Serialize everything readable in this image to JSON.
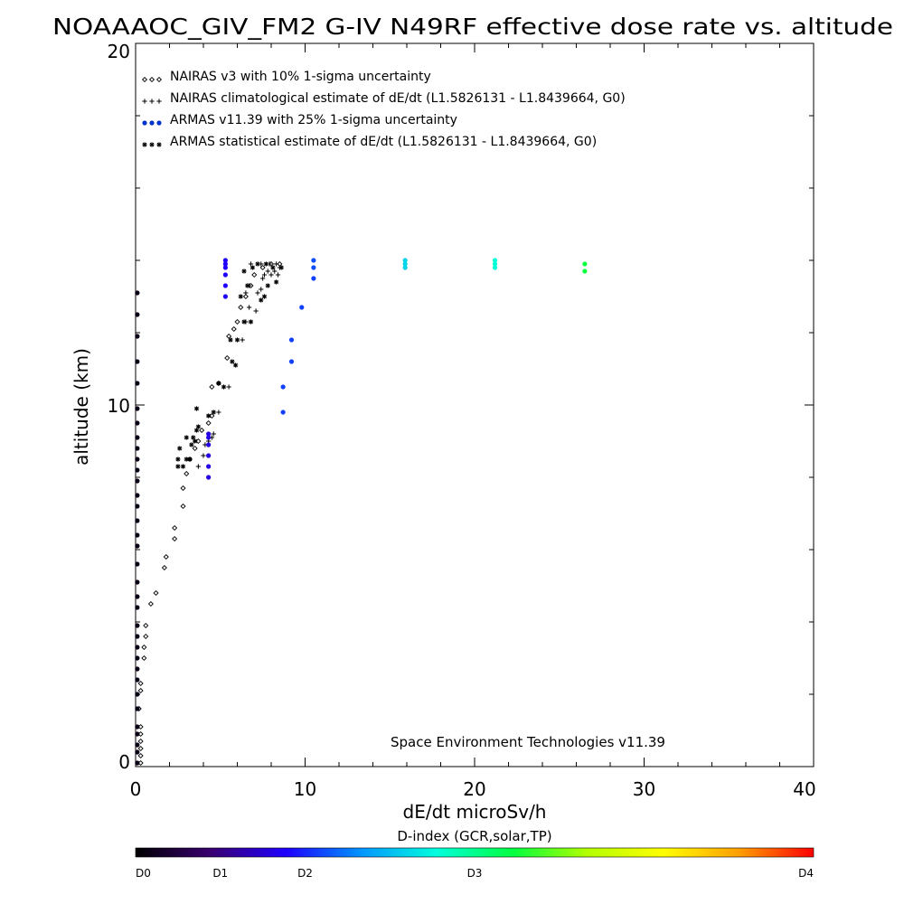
{
  "chart_data": {
    "type": "scatter",
    "title": "NOAAAOC_GIV_FM2 G-IV   N49RF  effective dose rate vs. altitude",
    "xlabel": "dE/dt microSv/h",
    "ylabel": "altitude (km)",
    "xlim": [
      0,
      40
    ],
    "ylim": [
      0,
      20
    ],
    "x_ticks": [
      "0",
      "10",
      "20",
      "30",
      "40"
    ],
    "y_ticks": [
      "0",
      "10",
      "20"
    ],
    "grid": false,
    "legend_placement": "top-left",
    "annotation": "Space Environment Technologies v11.39",
    "legend": [
      {
        "label": "NAIRAS v3 with 10% 1-sigma uncertainty",
        "symbol": "diamond",
        "color": "#000000"
      },
      {
        "label": "NAIRAS climatological estimate of dE/dt (L1.5826131 - L1.8439664, G0)",
        "symbol": "plus",
        "color": "#000000"
      },
      {
        "label": "ARMAS v11.39 with 25% 1-sigma uncertainty",
        "symbol": "dot",
        "color": "#0033cc"
      },
      {
        "label": "ARMAS statistical estimate of dE/dt (L1.5826131 - L1.8439664, G0)",
        "symbol": "asterisk",
        "color": "#000000"
      }
    ],
    "series": [
      {
        "name": "NAIRAS v3 with 10% 1-sigma uncertainty",
        "symbol": "diamond",
        "points": [
          [
            0.3,
            0.1
          ],
          [
            0.3,
            0.3
          ],
          [
            0.3,
            0.5
          ],
          [
            0.3,
            0.7
          ],
          [
            0.3,
            0.9
          ],
          [
            0.3,
            1.1
          ],
          [
            0.2,
            1.6
          ],
          [
            0.3,
            2.1
          ],
          [
            0.3,
            2.3
          ],
          [
            0.5,
            3.0
          ],
          [
            0.5,
            3.3
          ],
          [
            0.6,
            3.6
          ],
          [
            0.6,
            3.9
          ],
          [
            0.9,
            4.5
          ],
          [
            1.2,
            4.8
          ],
          [
            1.7,
            5.5
          ],
          [
            1.8,
            5.8
          ],
          [
            2.3,
            6.3
          ],
          [
            2.3,
            6.6
          ],
          [
            2.8,
            7.2
          ],
          [
            2.8,
            7.7
          ],
          [
            3.0,
            8.1
          ],
          [
            3.2,
            8.5
          ],
          [
            3.5,
            8.8
          ],
          [
            3.7,
            9.0
          ],
          [
            3.9,
            9.3
          ],
          [
            4.3,
            9.5
          ],
          [
            4.5,
            9.7
          ],
          [
            4.5,
            10.5
          ],
          [
            4.9,
            10.6
          ],
          [
            5.4,
            11.3
          ],
          [
            5.5,
            11.9
          ],
          [
            5.8,
            12.1
          ],
          [
            6.0,
            12.3
          ],
          [
            6.2,
            12.7
          ],
          [
            6.5,
            13.0
          ],
          [
            6.8,
            13.3
          ],
          [
            7.0,
            13.6
          ],
          [
            7.5,
            13.8
          ],
          [
            8.0,
            13.9
          ],
          [
            8.5,
            13.9
          ]
        ]
      },
      {
        "name": "NAIRAS climatological estimate of dE/dt (L1.5826131 - L1.8439664, G0)",
        "symbol": "plus",
        "points": [
          [
            3.7,
            8.3
          ],
          [
            4.0,
            8.6
          ],
          [
            4.1,
            8.9
          ],
          [
            4.3,
            9.0
          ],
          [
            4.5,
            9.1
          ],
          [
            4.6,
            9.2
          ],
          [
            4.9,
            9.8
          ],
          [
            5.5,
            10.5
          ],
          [
            6.3,
            11.8
          ],
          [
            6.5,
            12.3
          ],
          [
            6.7,
            12.7
          ],
          [
            7.1,
            12.6
          ],
          [
            6.5,
            13.1
          ],
          [
            6.7,
            13.3
          ],
          [
            7.2,
            13.1
          ],
          [
            7.4,
            13.2
          ],
          [
            7.5,
            13.5
          ],
          [
            7.6,
            13.6
          ],
          [
            7.8,
            13.7
          ],
          [
            8.0,
            13.6
          ],
          [
            8.2,
            13.7
          ],
          [
            8.4,
            13.6
          ],
          [
            6.8,
            13.9
          ],
          [
            7.4,
            13.9
          ],
          [
            7.9,
            13.9
          ],
          [
            8.3,
            13.9
          ],
          [
            8.5,
            13.8
          ]
        ]
      },
      {
        "name": "ARMAS statistical estimate of dE/dt (L1.5826131 - L1.8439664, G0)",
        "symbol": "asterisk",
        "points": [
          [
            2.5,
            8.5
          ],
          [
            2.6,
            8.8
          ],
          [
            2.5,
            8.3
          ],
          [
            2.8,
            8.3
          ],
          [
            3.0,
            8.5
          ],
          [
            3.2,
            8.5
          ],
          [
            3.3,
            8.9
          ],
          [
            3.0,
            9.1
          ],
          [
            3.4,
            9.1
          ],
          [
            3.5,
            9.0
          ],
          [
            3.6,
            9.3
          ],
          [
            3.7,
            9.4
          ],
          [
            3.6,
            9.9
          ],
          [
            4.3,
            9.7
          ],
          [
            4.6,
            9.8
          ],
          [
            4.9,
            10.6
          ],
          [
            5.2,
            10.5
          ],
          [
            5.7,
            11.2
          ],
          [
            5.9,
            11.1
          ],
          [
            5.6,
            11.8
          ],
          [
            6.0,
            11.8
          ],
          [
            6.4,
            12.3
          ],
          [
            6.8,
            12.3
          ],
          [
            6.2,
            13.0
          ],
          [
            6.6,
            13.3
          ],
          [
            7.4,
            12.9
          ],
          [
            7.6,
            13.0
          ],
          [
            7.8,
            13.3
          ],
          [
            8.3,
            13.4
          ],
          [
            6.4,
            13.7
          ],
          [
            6.9,
            13.8
          ],
          [
            7.2,
            13.9
          ],
          [
            7.7,
            13.9
          ],
          [
            8.1,
            13.8
          ],
          [
            8.6,
            13.8
          ]
        ]
      },
      {
        "name": "ARMAS v11.39 with 25% 1-sigma uncertainty",
        "symbol": "dot",
        "points": [
          [
            0.1,
            0.1,
            0.02
          ],
          [
            0.1,
            0.4,
            0.02
          ],
          [
            0.1,
            0.6,
            0.02
          ],
          [
            0.1,
            0.9,
            0.02
          ],
          [
            0.1,
            1.1,
            0.02
          ],
          [
            0.1,
            1.6,
            0.02
          ],
          [
            0.1,
            2.0,
            0.02
          ],
          [
            0.1,
            2.4,
            0.02
          ],
          [
            0.1,
            2.7,
            0.02
          ],
          [
            0.1,
            3.0,
            0.02
          ],
          [
            0.1,
            3.3,
            0.02
          ],
          [
            0.1,
            3.6,
            0.02
          ],
          [
            0.1,
            3.9,
            0.02
          ],
          [
            0.1,
            4.4,
            0.02
          ],
          [
            0.1,
            4.7,
            0.02
          ],
          [
            0.1,
            5.1,
            0.02
          ],
          [
            0.1,
            5.6,
            0.02
          ],
          [
            0.1,
            6.1,
            0.02
          ],
          [
            0.1,
            6.4,
            0.02
          ],
          [
            0.1,
            6.8,
            0.02
          ],
          [
            0.1,
            7.2,
            0.02
          ],
          [
            0.1,
            7.5,
            0.02
          ],
          [
            0.1,
            7.9,
            0.02
          ],
          [
            0.1,
            8.2,
            0.02
          ],
          [
            0.1,
            8.5,
            0.02
          ],
          [
            0.1,
            8.8,
            0.02
          ],
          [
            0.1,
            9.1,
            0.02
          ],
          [
            0.1,
            9.5,
            0.02
          ],
          [
            0.1,
            9.9,
            0.02
          ],
          [
            0.1,
            10.6,
            0.02
          ],
          [
            0.1,
            11.2,
            0.02
          ],
          [
            0.1,
            11.9,
            0.02
          ],
          [
            0.1,
            12.5,
            0.02
          ],
          [
            0.1,
            13.1,
            0.02
          ],
          [
            4.3,
            8.0,
            0.2
          ],
          [
            4.3,
            8.3,
            0.2
          ],
          [
            4.3,
            8.6,
            0.2
          ],
          [
            4.3,
            8.9,
            0.2
          ],
          [
            4.3,
            9.1,
            0.2
          ],
          [
            4.3,
            9.2,
            0.2
          ],
          [
            5.3,
            13.0,
            0.22
          ],
          [
            5.3,
            13.3,
            0.22
          ],
          [
            5.3,
            13.6,
            0.22
          ],
          [
            5.3,
            13.8,
            0.22
          ],
          [
            5.3,
            13.9,
            0.22
          ],
          [
            5.3,
            14.0,
            0.22
          ],
          [
            8.7,
            9.8,
            0.27
          ],
          [
            8.7,
            10.5,
            0.27
          ],
          [
            9.2,
            11.2,
            0.27
          ],
          [
            9.2,
            11.8,
            0.27
          ],
          [
            9.8,
            12.7,
            0.27
          ],
          [
            10.5,
            13.5,
            0.27
          ],
          [
            10.5,
            13.8,
            0.28
          ],
          [
            10.5,
            14.0,
            0.28
          ],
          [
            15.9,
            13.8,
            0.4
          ],
          [
            15.9,
            13.9,
            0.4
          ],
          [
            15.9,
            14.0,
            0.4
          ],
          [
            21.2,
            13.8,
            0.45
          ],
          [
            21.2,
            13.9,
            0.45
          ],
          [
            21.2,
            14.0,
            0.45
          ],
          [
            26.5,
            13.7,
            0.56
          ],
          [
            26.5,
            13.9,
            0.56
          ]
        ]
      }
    ]
  },
  "colorbar": {
    "title": "D-index (GCR,solar,TP)",
    "labels": [
      {
        "text": "D0",
        "value": 0
      },
      {
        "text": "D1",
        "value": 0.125
      },
      {
        "text": "D2",
        "value": 0.25
      },
      {
        "text": "D3",
        "value": 0.5
      },
      {
        "text": "D4",
        "value": 1
      }
    ],
    "stops": [
      "#000000",
      "#3a0070",
      "#1e00ff",
      "#0096ff",
      "#00ffdc",
      "#00ff40",
      "#b4ff00",
      "#ffff00",
      "#ffa000",
      "#ff0000"
    ]
  }
}
